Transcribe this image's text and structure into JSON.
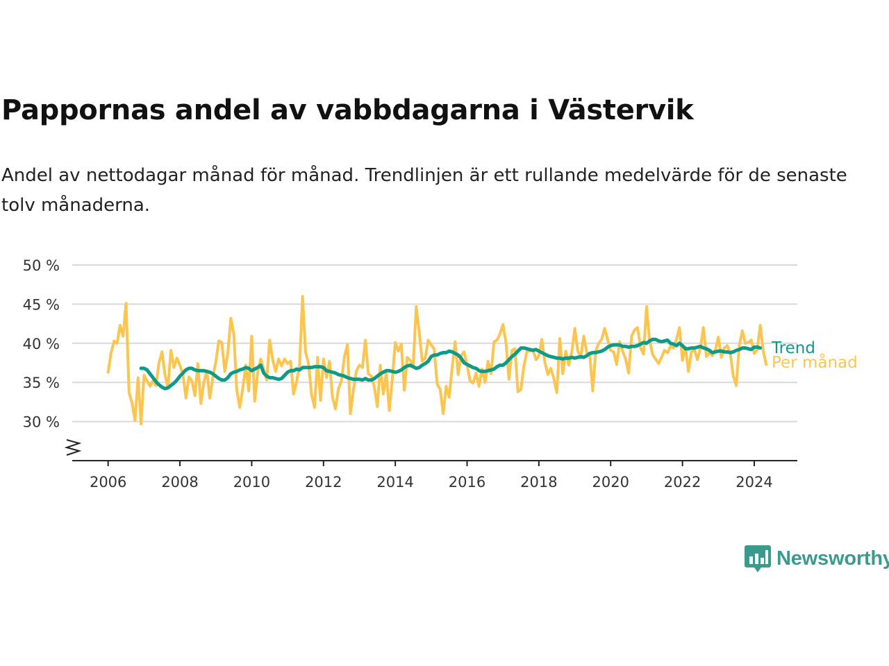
{
  "header": {
    "title": "Pappornas andel av vabbdagarna i Västervik",
    "subtitle": "Andel av nettodagar månad för månad. Trendlinjen är ett rullande medelvärde för de senaste tolv månaderna."
  },
  "brand": {
    "name": "Newsworthy",
    "color": "#3a9a8e"
  },
  "chart_data": {
    "type": "line",
    "ylim": [
      25,
      50
    ],
    "yticks": [
      30,
      35,
      40,
      45,
      50
    ],
    "ytick_labels": [
      "30 %",
      "35 %",
      "40 %",
      "45 %",
      "50 %"
    ],
    "y_axis_break": true,
    "xlim": [
      2005.0,
      2025.2
    ],
    "xticks": [
      2006,
      2008,
      2010,
      2012,
      2014,
      2016,
      2018,
      2020,
      2022,
      2024
    ],
    "xtick_labels": [
      "2006",
      "2008",
      "2010",
      "2012",
      "2014",
      "2016",
      "2018",
      "2020",
      "2022",
      "2024"
    ],
    "grid": "horizontal",
    "legend": "inline-right",
    "series": [
      {
        "name": "Per månad",
        "color": "#fbc54f",
        "x_start": 2006.0,
        "step": "month",
        "values": [
          36.3,
          38.8,
          40.3,
          40.0,
          42.3,
          40.9,
          45.1,
          33.7,
          32.4,
          30.1,
          35.6,
          29.7,
          35.9,
          35.2,
          34.5,
          35.2,
          34.6,
          37.5,
          38.9,
          36.0,
          34.3,
          39.1,
          36.9,
          38.1,
          37.2,
          36.0,
          33.0,
          35.7,
          35.2,
          33.3,
          37.4,
          32.3,
          35.0,
          36.5,
          33.0,
          35.6,
          37.6,
          40.3,
          40.1,
          36.4,
          38.7,
          43.2,
          41.2,
          34.0,
          31.8,
          34.2,
          37.2,
          33.9,
          40.9,
          32.6,
          36.3,
          38.0,
          36.7,
          35.3,
          40.4,
          37.9,
          36.4,
          38.0,
          37.1,
          38.0,
          37.4,
          37.7,
          33.5,
          35.1,
          37.2,
          46.0,
          38.9,
          37.4,
          33.4,
          31.8,
          38.2,
          32.7,
          38.0,
          35.6,
          37.7,
          33.1,
          31.6,
          34.2,
          35.2,
          38.3,
          39.8,
          31.0,
          34.1,
          36.5,
          37.2,
          36.9,
          40.4,
          36.1,
          35.8,
          34.4,
          31.9,
          37.2,
          33.5,
          36.3,
          31.4,
          35.4,
          40.1,
          39.0,
          39.9,
          34.0,
          38.2,
          37.8,
          37.2,
          44.7,
          41.4,
          37.7,
          38.1,
          40.4,
          39.8,
          39.3,
          34.8,
          34.1,
          31.0,
          34.5,
          33.1,
          36.9,
          40.2,
          36.0,
          38.4,
          38.9,
          37.2,
          35.2,
          34.9,
          36.2,
          34.5,
          36.7,
          35.0,
          37.7,
          36.1,
          40.2,
          40.4,
          41.2,
          42.4,
          40.1,
          35.4,
          39.1,
          39.3,
          33.8,
          34.1,
          37.1,
          39.0,
          39.0,
          39.2,
          37.9,
          38.4,
          40.5,
          37.6,
          36.0,
          36.8,
          35.5,
          33.7,
          40.6,
          36.1,
          39.0,
          37.2,
          38.9,
          41.9,
          39.0,
          38.3,
          40.9,
          38.8,
          38.6,
          33.9,
          39.0,
          40.0,
          40.5,
          41.9,
          40.5,
          39.1,
          38.9,
          37.3,
          40.2,
          39.0,
          38.0,
          36.2,
          40.9,
          41.7,
          42.0,
          39.4,
          38.6,
          44.7,
          40.5,
          38.6,
          38.0,
          37.4,
          38.2,
          39.1,
          38.8,
          39.6,
          39.4,
          40.5,
          42.0,
          37.8,
          39.5,
          36.4,
          38.9,
          39.2,
          37.9,
          39.4,
          42.0,
          38.3,
          38.8,
          38.4,
          39.2,
          40.8,
          38.2,
          39.4,
          39.7,
          38.7,
          35.8,
          34.6,
          39.7,
          41.6,
          40.0,
          40.1,
          40.4,
          38.7,
          39.2,
          42.3,
          39.0,
          37.3
        ]
      },
      {
        "name": "Trend",
        "color": "#0f9a88",
        "x_start": 2006.917,
        "step": "month",
        "values": [
          36.8,
          36.8,
          36.6,
          36.1,
          35.6,
          35.1,
          34.7,
          34.4,
          34.2,
          34.3,
          34.6,
          34.9,
          35.3,
          35.8,
          36.2,
          36.6,
          36.8,
          36.8,
          36.6,
          36.5,
          36.5,
          36.5,
          36.4,
          36.3,
          36.1,
          35.8,
          35.5,
          35.3,
          35.3,
          35.6,
          36.1,
          36.3,
          36.4,
          36.6,
          36.7,
          36.9,
          36.8,
          36.5,
          36.7,
          36.9,
          37.2,
          36.2,
          35.8,
          35.6,
          35.6,
          35.5,
          35.4,
          35.5,
          35.9,
          36.3,
          36.5,
          36.5,
          36.7,
          36.6,
          36.9,
          36.9,
          36.9,
          36.9,
          37.0,
          37.0,
          37.0,
          36.9,
          36.5,
          36.4,
          36.3,
          36.2,
          36.0,
          35.9,
          35.8,
          35.6,
          35.5,
          35.4,
          35.4,
          35.4,
          35.3,
          35.5,
          35.3,
          35.3,
          35.5,
          35.8,
          36.1,
          36.3,
          36.5,
          36.5,
          36.4,
          36.3,
          36.4,
          36.6,
          36.9,
          37.1,
          37.2,
          37.0,
          36.8,
          36.9,
          37.2,
          37.4,
          37.7,
          38.3,
          38.5,
          38.5,
          38.7,
          38.8,
          38.8,
          39.0,
          38.9,
          38.7,
          38.5,
          38.1,
          37.5,
          37.3,
          37.1,
          36.9,
          36.8,
          36.5,
          36.4,
          36.4,
          36.5,
          36.6,
          36.7,
          37.0,
          37.2,
          37.2,
          37.5,
          37.9,
          38.3,
          38.6,
          39.0,
          39.4,
          39.4,
          39.3,
          39.2,
          39.1,
          39.2,
          39.0,
          38.8,
          38.6,
          38.4,
          38.3,
          38.2,
          38.1,
          38.1,
          38.0,
          38.1,
          38.1,
          38.2,
          38.1,
          38.2,
          38.3,
          38.2,
          38.4,
          38.7,
          38.8,
          38.8,
          38.9,
          39.0,
          39.2,
          39.5,
          39.7,
          39.8,
          39.8,
          39.8,
          39.6,
          39.6,
          39.5,
          39.6,
          39.6,
          39.7,
          39.9,
          40.1,
          40.0,
          40.3,
          40.5,
          40.5,
          40.3,
          40.2,
          40.3,
          40.4,
          40.0,
          39.9,
          39.7,
          40.0,
          39.7,
          39.3,
          39.3,
          39.4,
          39.4,
          39.5,
          39.6,
          39.4,
          39.3,
          39.1,
          38.8,
          38.9,
          39.0,
          39.0,
          38.9,
          38.9,
          38.8,
          38.9,
          39.1,
          39.2,
          39.4,
          39.4,
          39.3,
          39.2,
          39.5,
          39.5,
          39.4
        ]
      }
    ]
  }
}
